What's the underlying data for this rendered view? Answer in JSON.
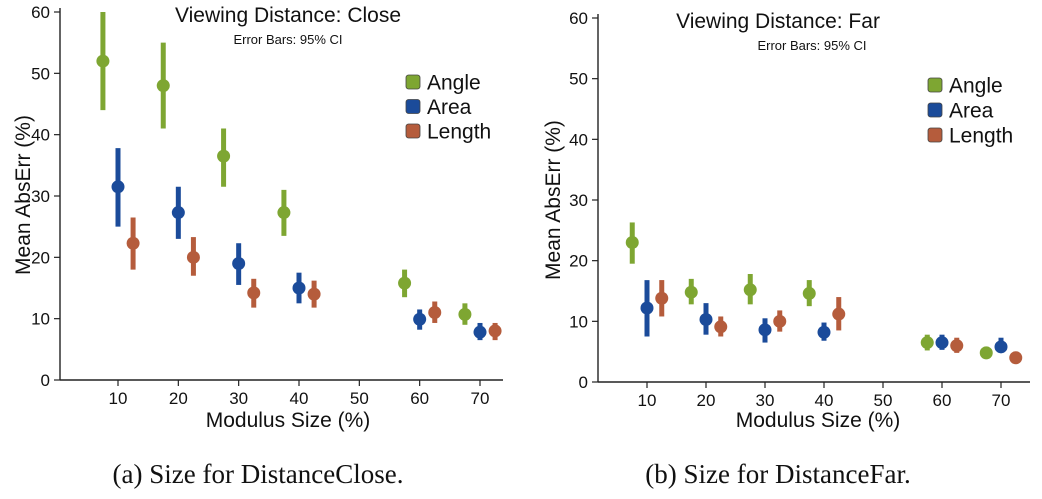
{
  "chart_data": [
    {
      "type": "scatter",
      "title": "Viewing Distance: Close",
      "subtitle": "Error Bars: 95% CI",
      "xlabel": "Modulus Size (%)",
      "ylabel": "Mean AbsErr (%)",
      "xlim": [
        0,
        75
      ],
      "ylim": [
        0,
        60
      ],
      "xticks": [
        10,
        20,
        30,
        40,
        50,
        60,
        70
      ],
      "yticks": [
        0,
        10,
        20,
        30,
        40,
        50,
        60
      ],
      "legend_position": "top-right",
      "caption": "(a)  Size for DistanceClose.",
      "series": [
        {
          "name": "Angle",
          "color": "#7ea632",
          "points": [
            {
              "x": 7.5,
              "y": 52,
              "lo": 44,
              "hi": 60
            },
            {
              "x": 17.5,
              "y": 48,
              "lo": 41,
              "hi": 55
            },
            {
              "x": 27.5,
              "y": 36.5,
              "lo": 31.5,
              "hi": 41
            },
            {
              "x": 37.5,
              "y": 27.3,
              "lo": 23.5,
              "hi": 31
            },
            {
              "x": 57.5,
              "y": 15.8,
              "lo": 13.5,
              "hi": 18
            },
            {
              "x": 67.5,
              "y": 10.7,
              "lo": 9,
              "hi": 12.5
            }
          ]
        },
        {
          "name": "Area",
          "color": "#1b4b9a",
          "points": [
            {
              "x": 10,
              "y": 31.5,
              "lo": 25,
              "hi": 37.8
            },
            {
              "x": 20,
              "y": 27.3,
              "lo": 23,
              "hi": 31.5
            },
            {
              "x": 30,
              "y": 19,
              "lo": 15.5,
              "hi": 22.3
            },
            {
              "x": 40,
              "y": 15,
              "lo": 12.5,
              "hi": 17.5
            },
            {
              "x": 60,
              "y": 9.9,
              "lo": 8.2,
              "hi": 11.5
            },
            {
              "x": 70,
              "y": 7.8,
              "lo": 6.5,
              "hi": 9.3
            }
          ]
        },
        {
          "name": "Length",
          "color": "#b55c3c",
          "points": [
            {
              "x": 12.5,
              "y": 22.3,
              "lo": 18,
              "hi": 26.5
            },
            {
              "x": 22.5,
              "y": 20,
              "lo": 17,
              "hi": 23.3
            },
            {
              "x": 32.5,
              "y": 14.2,
              "lo": 11.8,
              "hi": 16.5
            },
            {
              "x": 42.5,
              "y": 14,
              "lo": 11.8,
              "hi": 16.2
            },
            {
              "x": 62.5,
              "y": 11,
              "lo": 9.3,
              "hi": 12.8
            },
            {
              "x": 72.5,
              "y": 8,
              "lo": 6.5,
              "hi": 9.3
            }
          ]
        }
      ]
    },
    {
      "type": "scatter",
      "title": "Viewing Distance: Far",
      "subtitle": "Error Bars: 95% CI",
      "xlabel": "Modulus Size (%)",
      "ylabel": "Mean AbsErr (%)",
      "xlim": [
        0,
        75
      ],
      "ylim": [
        0,
        60
      ],
      "xticks": [
        10,
        20,
        30,
        40,
        50,
        60,
        70
      ],
      "yticks": [
        0,
        10,
        20,
        30,
        40,
        50,
        60
      ],
      "legend_position": "top-right",
      "caption": "(b)  Size for DistanceFar.",
      "series": [
        {
          "name": "Angle",
          "color": "#7ea632",
          "points": [
            {
              "x": 7.5,
              "y": 23,
              "lo": 19.5,
              "hi": 26.3
            },
            {
              "x": 17.5,
              "y": 14.8,
              "lo": 12.8,
              "hi": 17
            },
            {
              "x": 27.5,
              "y": 15.2,
              "lo": 12.8,
              "hi": 17.8
            },
            {
              "x": 37.5,
              "y": 14.6,
              "lo": 12.5,
              "hi": 16.8
            },
            {
              "x": 57.5,
              "y": 6.5,
              "lo": 5.2,
              "hi": 7.8
            },
            {
              "x": 67.5,
              "y": 4.8,
              "lo": 4,
              "hi": 5.8
            }
          ]
        },
        {
          "name": "Area",
          "color": "#1b4b9a",
          "points": [
            {
              "x": 10,
              "y": 12.2,
              "lo": 7.5,
              "hi": 16.8
            },
            {
              "x": 20,
              "y": 10.3,
              "lo": 7.8,
              "hi": 13
            },
            {
              "x": 30,
              "y": 8.6,
              "lo": 6.5,
              "hi": 10.5
            },
            {
              "x": 40,
              "y": 8.2,
              "lo": 6.8,
              "hi": 9.8
            },
            {
              "x": 60,
              "y": 6.5,
              "lo": 5.3,
              "hi": 7.8
            },
            {
              "x": 70,
              "y": 5.8,
              "lo": 4.8,
              "hi": 7.3
            }
          ]
        },
        {
          "name": "Length",
          "color": "#b55c3c",
          "points": [
            {
              "x": 12.5,
              "y": 13.8,
              "lo": 10.8,
              "hi": 16.8
            },
            {
              "x": 22.5,
              "y": 9.1,
              "lo": 7.5,
              "hi": 10.8
            },
            {
              "x": 32.5,
              "y": 10,
              "lo": 8.3,
              "hi": 11.8
            },
            {
              "x": 42.5,
              "y": 11.2,
              "lo": 8.5,
              "hi": 14
            },
            {
              "x": 62.5,
              "y": 6,
              "lo": 4.8,
              "hi": 7.3
            },
            {
              "x": 72.5,
              "y": 4,
              "lo": 3.2,
              "hi": 5
            }
          ]
        }
      ]
    }
  ]
}
